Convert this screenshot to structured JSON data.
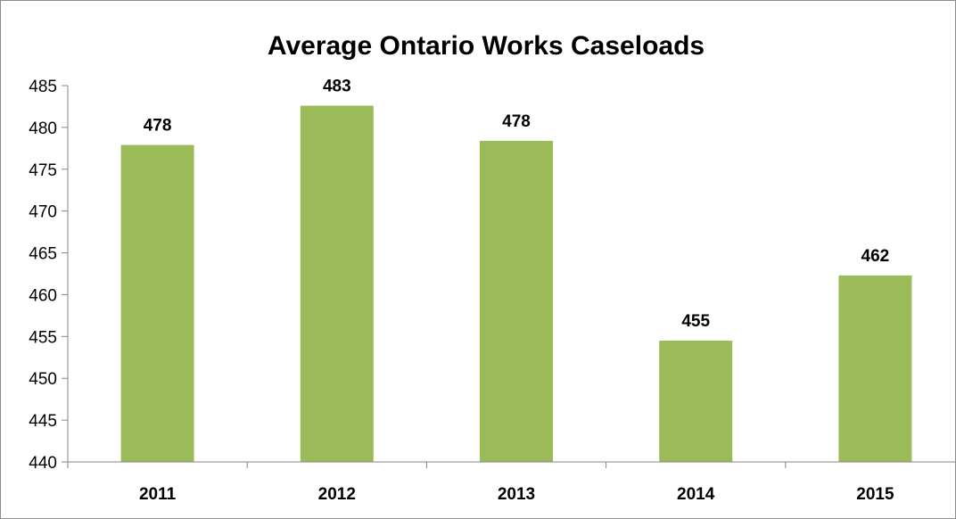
{
  "chart_data": {
    "type": "bar",
    "title": "Average Ontario Works Caseloads",
    "categories": [
      "2011",
      "2012",
      "2013",
      "2014",
      "2015"
    ],
    "values": [
      477.9,
      482.6,
      478.4,
      454.5,
      462.3
    ],
    "data_labels": [
      "478",
      "483",
      "478",
      "455",
      "462"
    ],
    "xlabel": "",
    "ylabel": "",
    "ylim": [
      440,
      485
    ],
    "yticks": [
      440,
      445,
      450,
      455,
      460,
      465,
      470,
      475,
      480,
      485
    ],
    "grid": false,
    "legend": "none",
    "bar_color": "#9BBB59"
  }
}
